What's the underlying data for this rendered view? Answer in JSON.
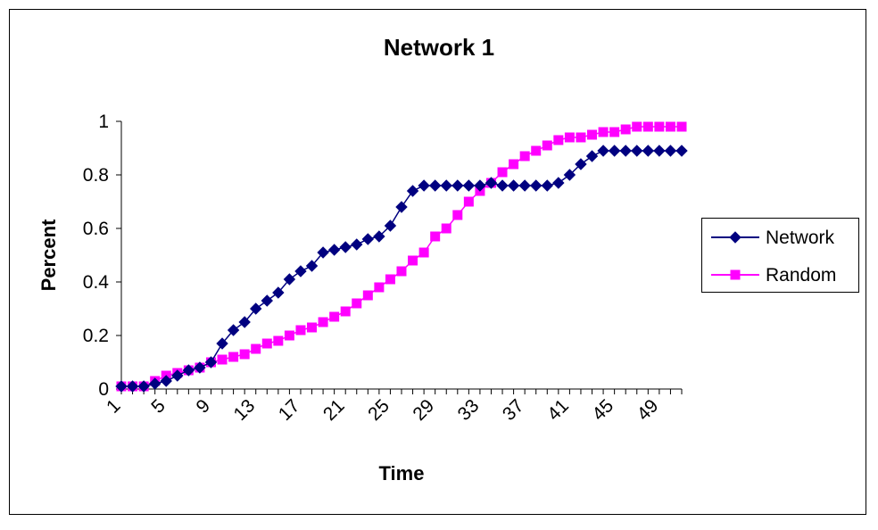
{
  "chart_data": {
    "type": "line",
    "title": "Network 1",
    "xlabel": "Time",
    "ylabel": "Percent",
    "x": [
      1,
      2,
      3,
      4,
      5,
      6,
      7,
      8,
      9,
      10,
      11,
      12,
      13,
      14,
      15,
      16,
      17,
      18,
      19,
      20,
      21,
      22,
      23,
      24,
      25,
      26,
      27,
      28,
      29,
      30,
      31,
      32,
      33,
      34,
      35,
      36,
      37,
      38,
      39,
      40,
      41,
      42,
      43,
      44,
      45,
      46,
      47,
      48,
      49,
      50,
      51
    ],
    "x_tick_labels": [
      "1",
      "5",
      "9",
      "13",
      "17",
      "21",
      "25",
      "29",
      "33",
      "37",
      "41",
      "45",
      "49"
    ],
    "x_tick_values": [
      1,
      5,
      9,
      13,
      17,
      21,
      25,
      29,
      33,
      37,
      41,
      45,
      49
    ],
    "y_tick_labels": [
      "0",
      "0.2",
      "0.4",
      "0.6",
      "0.8",
      "1"
    ],
    "y_tick_values": [
      0,
      0.2,
      0.4,
      0.6,
      0.8,
      1
    ],
    "ylim": [
      0,
      1
    ],
    "grid": false,
    "legend_position": "right",
    "series": [
      {
        "name": "Network",
        "color": "#000080",
        "marker": "diamond",
        "values": [
          0.01,
          0.01,
          0.01,
          0.02,
          0.03,
          0.05,
          0.07,
          0.08,
          0.1,
          0.17,
          0.22,
          0.25,
          0.3,
          0.33,
          0.36,
          0.41,
          0.44,
          0.46,
          0.51,
          0.52,
          0.53,
          0.54,
          0.56,
          0.57,
          0.61,
          0.68,
          0.74,
          0.76,
          0.76,
          0.76,
          0.76,
          0.76,
          0.76,
          0.77,
          0.76,
          0.76,
          0.76,
          0.76,
          0.76,
          0.77,
          0.8,
          0.84,
          0.87,
          0.89,
          0.89,
          0.89,
          0.89,
          0.89,
          0.89,
          0.89,
          0.89
        ]
      },
      {
        "name": "Random",
        "color": "#ff00ff",
        "marker": "square",
        "values": [
          0.01,
          0.01,
          0.01,
          0.03,
          0.05,
          0.06,
          0.07,
          0.08,
          0.1,
          0.11,
          0.12,
          0.13,
          0.15,
          0.17,
          0.18,
          0.2,
          0.22,
          0.23,
          0.25,
          0.27,
          0.29,
          0.32,
          0.35,
          0.38,
          0.41,
          0.44,
          0.48,
          0.51,
          0.57,
          0.6,
          0.65,
          0.7,
          0.74,
          0.77,
          0.81,
          0.84,
          0.87,
          0.89,
          0.91,
          0.93,
          0.94,
          0.94,
          0.95,
          0.96,
          0.96,
          0.97,
          0.98,
          0.98,
          0.98,
          0.98,
          0.98
        ]
      }
    ]
  }
}
